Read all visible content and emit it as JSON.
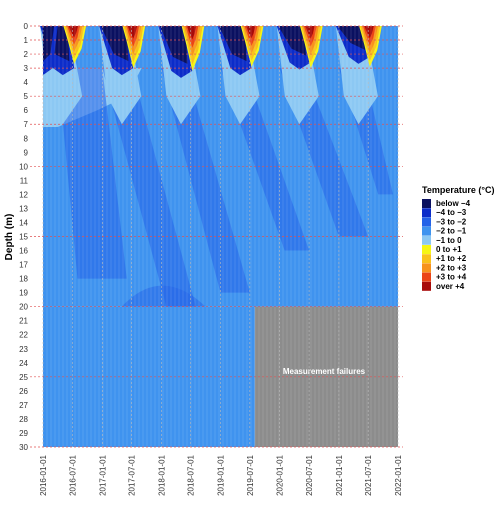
{
  "chart_data": {
    "type": "heatmap",
    "title": "",
    "xlabel": "",
    "ylabel": "Depth (m)",
    "x_ticks": [
      "2016-01-01",
      "2016-07-01",
      "2017-01-01",
      "2017-07-01",
      "2018-01-01",
      "2018-07-01",
      "2019-01-01",
      "2019-07-01",
      "2020-01-01",
      "2020-07-01",
      "2021-01-01",
      "2021-07-01",
      "2022-01-01"
    ],
    "xlim": [
      "2016-01-01",
      "2022-01-01"
    ],
    "y_ticks": [
      0,
      1,
      2,
      3,
      4,
      5,
      6,
      7,
      8,
      9,
      10,
      11,
      12,
      13,
      14,
      15,
      16,
      17,
      18,
      19,
      20,
      21,
      22,
      23,
      24,
      25,
      26,
      27,
      28,
      29,
      30
    ],
    "ylim": [
      0,
      30
    ],
    "y_reversed": true,
    "reference_depths": [
      0,
      1,
      2,
      3,
      5,
      7,
      10,
      15,
      20,
      25,
      30
    ],
    "legend": {
      "title": "Temperature (°C)",
      "position": "right",
      "entries": [
        {
          "label": "below −4",
          "color": "#0a1060"
        },
        {
          "label": "−4 to −3",
          "color": "#0c2cc9"
        },
        {
          "label": "−3 to −2",
          "color": "#2462e8"
        },
        {
          "label": "−2 to −1",
          "color": "#3f93ef"
        },
        {
          "label": "−1 to 0",
          "color": "#8cc8f3"
        },
        {
          "label": "0 to +1",
          "color": "#f6f614"
        },
        {
          "label": "+1 to +2",
          "color": "#f9c21b"
        },
        {
          "label": "+2 to +3",
          "color": "#f7931d"
        },
        {
          "label": "+3 to +4",
          "color": "#eb4417"
        },
        {
          "label": "over +4",
          "color": "#a80a0a"
        }
      ]
    },
    "summer_thaw_dates": [
      "2016-07-01",
      "2017-07-01",
      "2018-07-01",
      "2019-07-01",
      "2020-07-01",
      "2021-07-01"
    ],
    "summer_thaw_max_depth_m": [
      2.5,
      2.8,
      3.0,
      2.7,
      2.8,
      2.7
    ],
    "summer_thaw_max_temp_label": [
      "over +4",
      "over +4",
      "over +4",
      "over +4",
      "over +4",
      "over +4"
    ],
    "winter_cold_max_depth_m": [
      3.0,
      3.0,
      3.2,
      3.0,
      2.6,
      2.2
    ],
    "deep_regime": [
      {
        "depth_range": [
          4,
          7
        ],
        "value": "−2 to −1",
        "note": "most of the period"
      },
      {
        "depth_range": [
          7,
          20
        ],
        "value": "−2 to −1",
        "note": "with recurring −3 to −2 plumes"
      },
      {
        "depth_range": [
          20,
          30
        ],
        "value": "−2 to −1",
        "period": [
          "2016-01-01",
          "2019-08-01"
        ]
      }
    ],
    "missing_data": {
      "label": "Measurement failures",
      "depth_range": [
        20,
        30
      ],
      "period": [
        "2019-08-01",
        "2022-01-01"
      ],
      "color": "#8c8c8c"
    },
    "grid": true
  }
}
